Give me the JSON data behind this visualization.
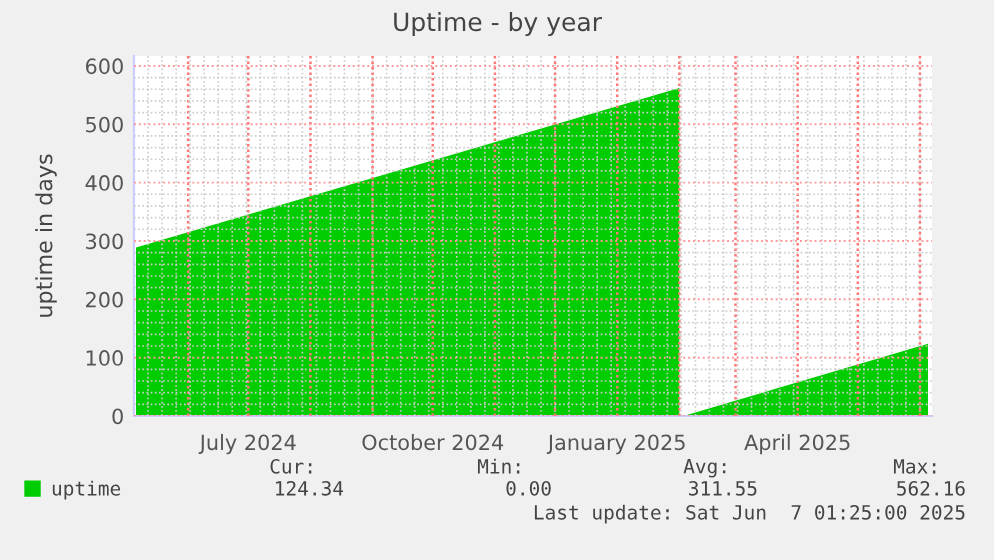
{
  "chart_data": {
    "type": "area",
    "title": "Uptime - by year",
    "ylabel": "uptime in days",
    "series": [
      {
        "name": "uptime",
        "color": "#00cc00",
        "x": [
          "2024-05-06",
          "2025-02-01",
          "2025-02-02",
          "2025-02-03",
          "2025-06-05"
        ],
        "values": [
          289,
          562,
          null,
          0,
          124
        ]
      }
    ],
    "xlim": [
      "2024-05-05",
      "2025-06-07"
    ],
    "xticks": [
      {
        "value": "2024-06-01",
        "label": null
      },
      {
        "value": "2024-07-01",
        "label": "July 2024"
      },
      {
        "value": "2024-08-01",
        "label": null
      },
      {
        "value": "2024-09-01",
        "label": null
      },
      {
        "value": "2024-10-01",
        "label": "October 2024"
      },
      {
        "value": "2024-11-01",
        "label": null
      },
      {
        "value": "2024-12-01",
        "label": null
      },
      {
        "value": "2025-01-01",
        "label": "January 2025"
      },
      {
        "value": "2025-02-01",
        "label": null
      },
      {
        "value": "2025-03-01",
        "label": null
      },
      {
        "value": "2025-04-01",
        "label": "April 2025"
      },
      {
        "value": "2025-05-01",
        "label": null
      },
      {
        "value": "2025-06-01",
        "label": null
      }
    ],
    "ylim": [
      0,
      617
    ],
    "yticks": [
      0,
      100,
      200,
      300,
      400,
      500,
      600
    ],
    "grid": true,
    "legend": "bottom left",
    "annotations": [
      "Cur:",
      "Min:",
      "Avg:",
      "Max:",
      "124.34",
      "0.00",
      "311.55",
      "562.16",
      "Last update: Sat Jun  7 01:25:00 2025"
    ]
  }
}
